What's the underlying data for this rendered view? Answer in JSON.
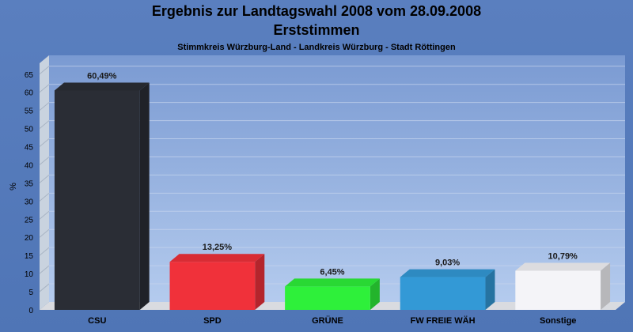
{
  "header": {
    "title": "Ergebnis zur Landtagswahl 2008 vom 28.09.2008",
    "subtitle": "Erststimmen",
    "caption": "Stimmkreis Würzburg-Land - Landkreis Würzburg - Stadt Röttingen"
  },
  "chart_data": {
    "type": "bar",
    "title": "Ergebnis zur Landtagswahl 2008 vom 28.09.2008",
    "subtitle": "Erststimmen",
    "ylabel": "%",
    "xlabel": "",
    "ylim": [
      0,
      68
    ],
    "yticks": [
      0,
      5,
      10,
      15,
      20,
      25,
      30,
      35,
      40,
      45,
      50,
      55,
      60,
      65
    ],
    "categories": [
      "CSU",
      "SPD",
      "GRÜNE",
      "FW FREIE WÄH",
      "Sonstige"
    ],
    "values": [
      60.49,
      13.25,
      6.45,
      9.03,
      10.79
    ],
    "value_labels": [
      "60,49%",
      "13,25%",
      "6,45%",
      "9,03%",
      "10,79%"
    ],
    "colors": [
      "#2a2d35",
      "#f0313a",
      "#2ef03a",
      "#3399d6",
      "#f4f4f8"
    ],
    "grid": true
  }
}
